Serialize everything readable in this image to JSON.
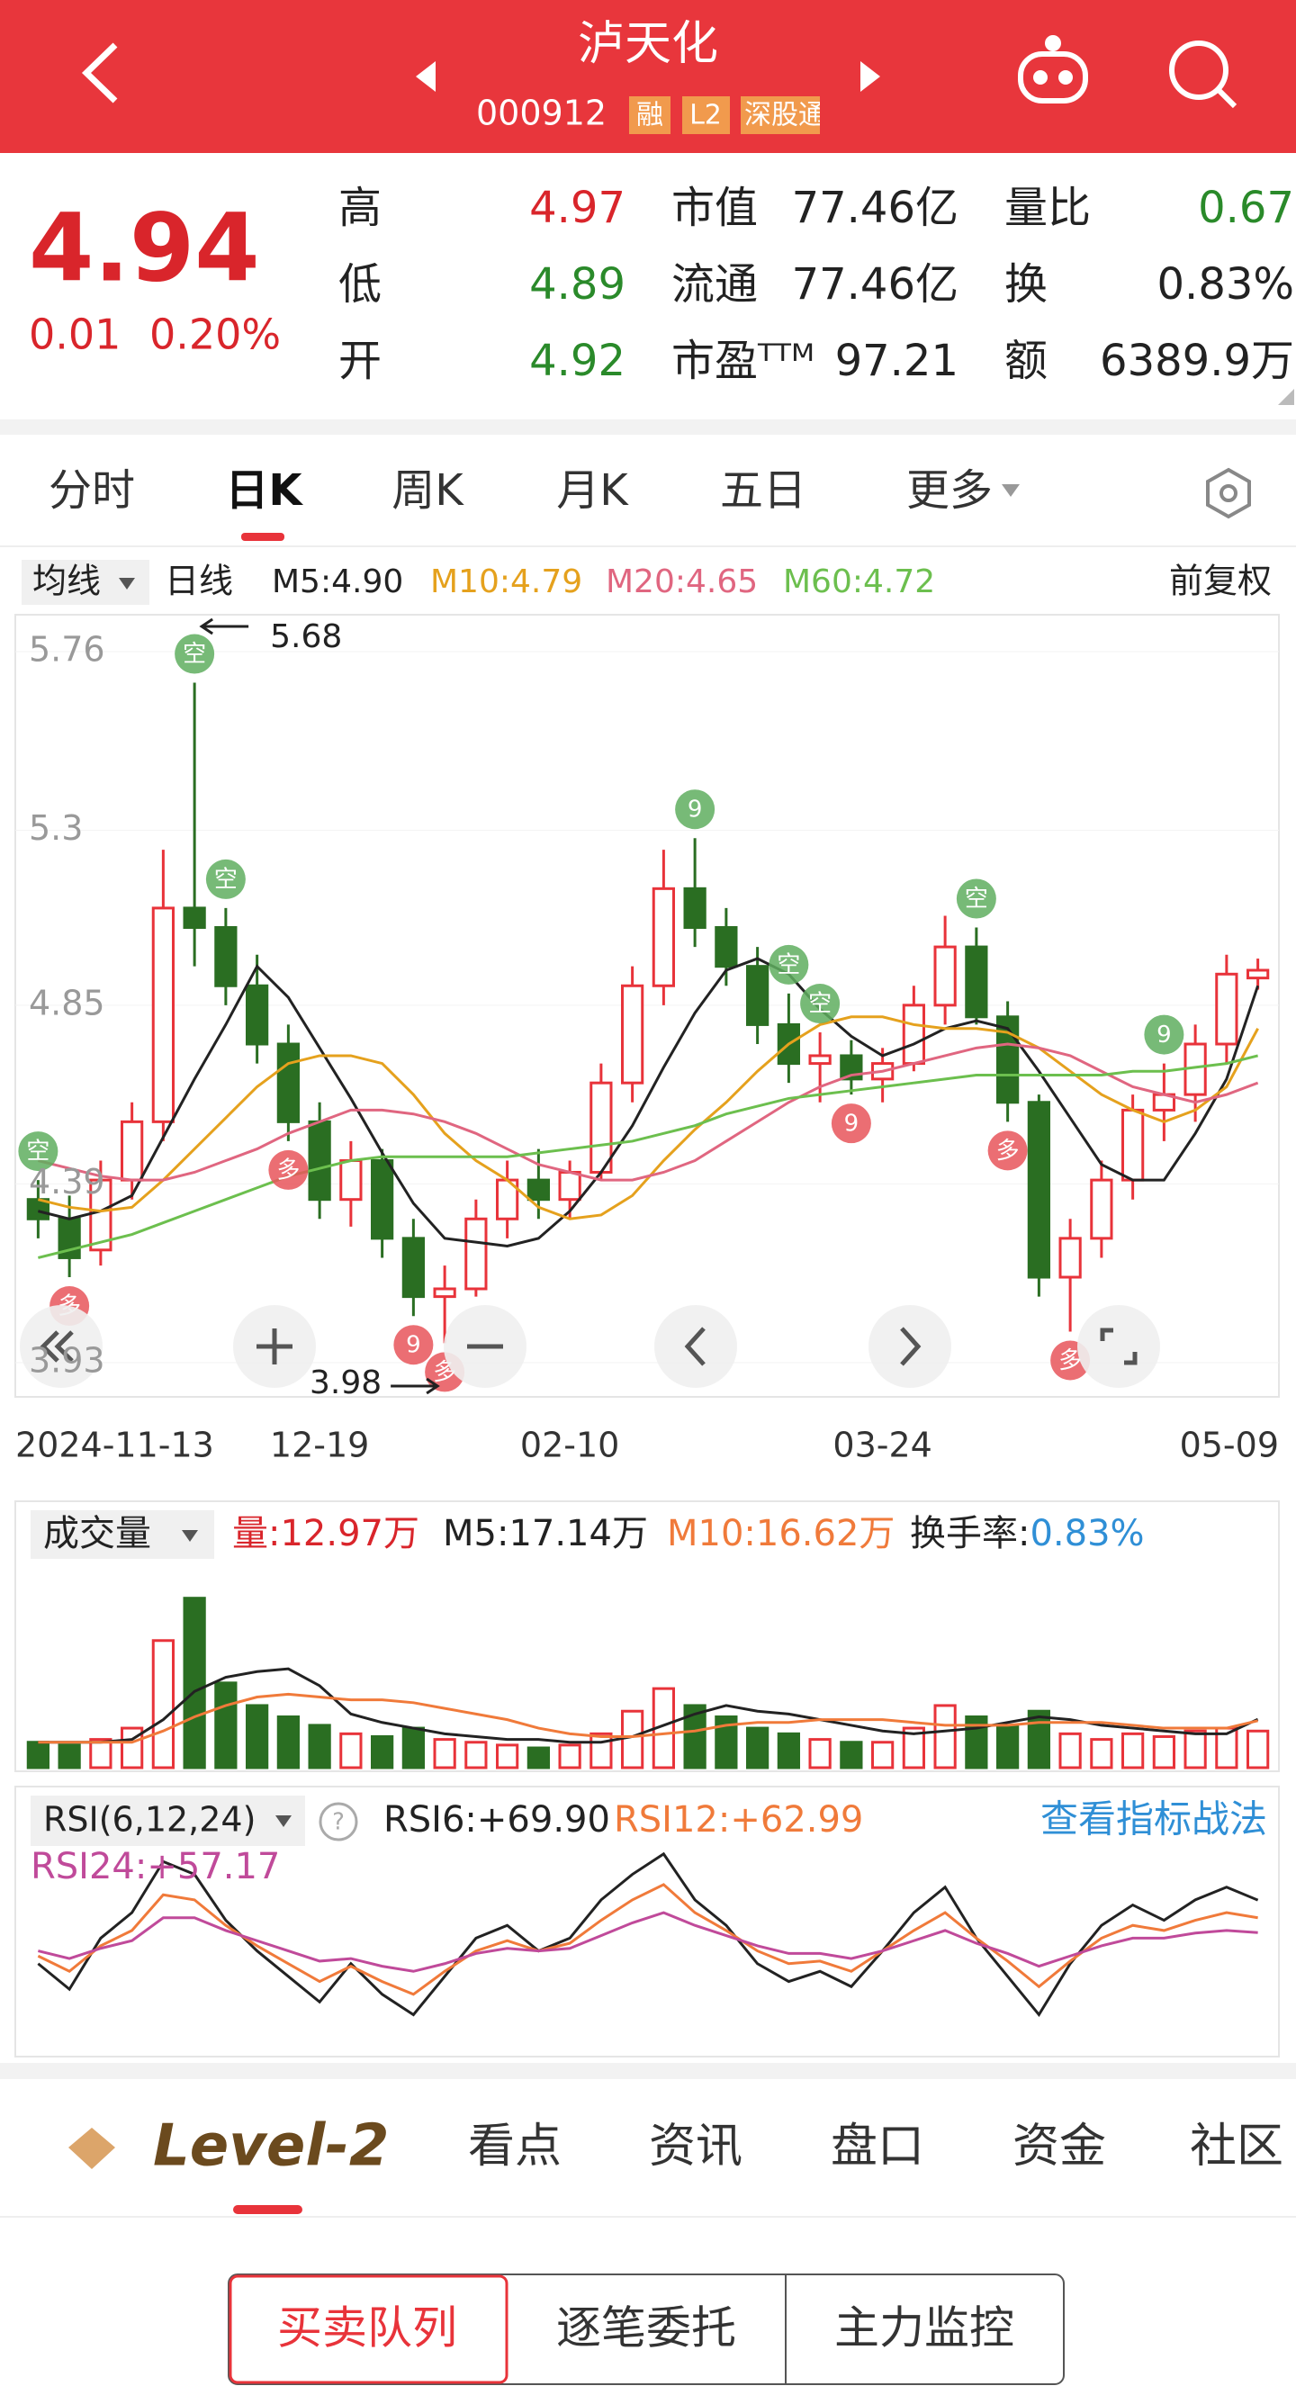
{
  "header": {
    "title": "泸天化",
    "code": "000912",
    "badges": [
      "融",
      "L2",
      "深股通"
    ]
  },
  "quote": {
    "price": "4.94",
    "change": "0.01",
    "pct": "0.20%",
    "color": "#d9252b",
    "stats": [
      [
        {
          "label": "高",
          "value": "4.97",
          "color": "#d9252b"
        },
        {
          "label": "市值",
          "value": "77.46亿",
          "color": "#222"
        },
        {
          "label": "量比",
          "value": "0.67",
          "color": "#2a8a2a"
        }
      ],
      [
        {
          "label": "低",
          "value": "4.89",
          "color": "#2a8a2a"
        },
        {
          "label": "流通",
          "value": "77.46亿",
          "color": "#222"
        },
        {
          "label": "换",
          "value": "0.83%",
          "color": "#222"
        }
      ],
      [
        {
          "label": "开",
          "value": "4.92",
          "color": "#2a8a2a"
        },
        {
          "label": "市盈ᵀᵀᴹ",
          "value": "97.21",
          "color": "#222"
        },
        {
          "label": "额",
          "value": "6389.9万",
          "color": "#222"
        }
      ]
    ]
  },
  "tabs": [
    "分时",
    "日K",
    "周K",
    "月K",
    "五日",
    "更多"
  ],
  "ma_bar": {
    "selector": "均线",
    "period": "日线",
    "adjust": "前复权"
  },
  "chart_data": [
    {
      "type": "candlestick",
      "up_color": "#e8333a",
      "down_color": "#2a6e22",
      "categories": [
        "2024-11-13",
        null,
        null,
        null,
        null,
        null,
        null,
        null,
        null,
        "12-19",
        null,
        null,
        null,
        null,
        null,
        null,
        null,
        "02-10",
        null,
        null,
        null,
        null,
        null,
        null,
        null,
        null,
        null,
        "03-24",
        null,
        null,
        null,
        null,
        null,
        null,
        null,
        null,
        null,
        null,
        null,
        "05-09"
      ],
      "open": [
        4.35,
        4.3,
        4.22,
        4.4,
        4.55,
        5.1,
        5.05,
        4.9,
        4.75,
        4.55,
        4.35,
        4.45,
        4.25,
        4.1,
        4.12,
        4.3,
        4.4,
        4.35,
        4.42,
        4.65,
        4.9,
        5.15,
        5.05,
        4.95,
        4.8,
        4.7,
        4.72,
        4.66,
        4.7,
        4.85,
        5.0,
        4.82,
        4.6,
        4.15,
        4.25,
        4.4,
        4.58,
        4.62,
        4.75,
        4.92
      ],
      "high": [
        4.4,
        4.36,
        4.45,
        4.6,
        5.25,
        5.68,
        5.1,
        4.98,
        4.8,
        4.6,
        4.5,
        4.48,
        4.3,
        4.18,
        4.35,
        4.45,
        4.48,
        4.45,
        4.7,
        4.95,
        5.25,
        5.28,
        5.1,
        5.0,
        4.88,
        4.78,
        4.76,
        4.74,
        4.9,
        5.08,
        5.05,
        4.86,
        4.62,
        4.3,
        4.45,
        4.62,
        4.7,
        4.8,
        4.98,
        4.97
      ],
      "low": [
        4.25,
        4.15,
        4.18,
        4.35,
        4.5,
        4.95,
        4.85,
        4.7,
        4.5,
        4.3,
        4.28,
        4.2,
        4.05,
        3.98,
        4.1,
        4.25,
        4.3,
        4.3,
        4.4,
        4.6,
        4.85,
        5.0,
        4.9,
        4.75,
        4.65,
        4.6,
        4.62,
        4.6,
        4.68,
        4.8,
        4.8,
        4.55,
        4.1,
        4.01,
        4.2,
        4.35,
        4.5,
        4.55,
        4.7,
        4.89
      ],
      "close": [
        4.3,
        4.2,
        4.4,
        4.55,
        5.1,
        5.05,
        4.9,
        4.75,
        4.55,
        4.35,
        4.45,
        4.25,
        4.1,
        4.12,
        4.3,
        4.4,
        4.35,
        4.42,
        4.65,
        4.9,
        5.15,
        5.05,
        4.95,
        4.8,
        4.7,
        4.72,
        4.66,
        4.7,
        4.85,
        5.0,
        4.82,
        4.6,
        4.15,
        4.25,
        4.4,
        4.58,
        4.62,
        4.75,
        4.93,
        4.94
      ],
      "ylim": [
        3.93,
        5.76
      ],
      "yticks": [
        5.76,
        5.3,
        4.85,
        4.39,
        3.93
      ],
      "series": [
        {
          "name": "M5:4.90",
          "color": "#222222",
          "values": [
            4.32,
            4.3,
            4.32,
            4.36,
            4.51,
            4.66,
            4.8,
            4.95,
            4.87,
            4.74,
            4.61,
            4.47,
            4.34,
            4.25,
            4.24,
            4.23,
            4.25,
            4.32,
            4.42,
            4.54,
            4.69,
            4.83,
            4.94,
            4.97,
            4.93,
            4.84,
            4.77,
            4.72,
            4.75,
            4.79,
            4.81,
            4.79,
            4.68,
            4.56,
            4.44,
            4.4,
            4.4,
            4.52,
            4.66,
            4.9
          ]
        },
        {
          "name": "M10:4.79",
          "color": "#e5a11d",
          "values": [
            4.35,
            4.33,
            4.32,
            4.33,
            4.4,
            4.48,
            4.56,
            4.64,
            4.7,
            4.72,
            4.72,
            4.7,
            4.62,
            4.52,
            4.45,
            4.4,
            4.33,
            4.3,
            4.31,
            4.36,
            4.45,
            4.53,
            4.6,
            4.68,
            4.75,
            4.8,
            4.82,
            4.82,
            4.8,
            4.79,
            4.79,
            4.78,
            4.74,
            4.68,
            4.62,
            4.58,
            4.55,
            4.58,
            4.64,
            4.79
          ]
        },
        {
          "name": "M20:4.65",
          "color": "#e06680",
          "values": [
            4.45,
            4.43,
            4.41,
            4.4,
            4.4,
            4.42,
            4.45,
            4.48,
            4.52,
            4.55,
            4.58,
            4.58,
            4.57,
            4.55,
            4.52,
            4.48,
            4.44,
            4.42,
            4.4,
            4.4,
            4.42,
            4.45,
            4.5,
            4.55,
            4.6,
            4.64,
            4.67,
            4.68,
            4.7,
            4.72,
            4.74,
            4.75,
            4.74,
            4.72,
            4.68,
            4.64,
            4.62,
            4.6,
            4.62,
            4.65
          ]
        },
        {
          "name": "M60:4.72",
          "color": "#6cbf4e",
          "values": [
            4.2,
            4.22,
            4.24,
            4.26,
            4.29,
            4.32,
            4.35,
            4.38,
            4.41,
            4.43,
            4.45,
            4.46,
            4.46,
            4.46,
            4.46,
            4.46,
            4.47,
            4.48,
            4.49,
            4.5,
            4.52,
            4.54,
            4.57,
            4.59,
            4.61,
            4.62,
            4.63,
            4.64,
            4.65,
            4.66,
            4.67,
            4.67,
            4.67,
            4.67,
            4.67,
            4.68,
            4.68,
            4.69,
            4.7,
            4.72
          ]
        }
      ],
      "signals": [
        {
          "label": "空",
          "color": "#5fae5f"
        },
        {
          "label": "多",
          "color": "#e8555a"
        },
        null,
        null,
        null,
        {
          "label": "空",
          "color": "#5fae5f"
        },
        {
          "label": "空",
          "color": "#5fae5f"
        },
        null,
        {
          "label": "多",
          "color": "#e8555a"
        },
        null,
        null,
        null,
        {
          "label": "9",
          "color": "#e8555a"
        },
        {
          "label": "多",
          "color": "#e8555a"
        },
        null,
        null,
        null,
        null,
        null,
        null,
        null,
        {
          "label": "9",
          "color": "#5fae5f"
        },
        null,
        null,
        {
          "label": "空",
          "color": "#5fae5f"
        },
        {
          "label": "空",
          "color": "#5fae5f"
        },
        {
          "label": "9",
          "color": "#e8555a"
        },
        null,
        null,
        null,
        {
          "label": "空",
          "color": "#5fae5f"
        },
        {
          "label": "多",
          "color": "#e8555a"
        },
        null,
        {
          "label": "多",
          "color": "#e8555a"
        },
        null,
        null,
        {
          "label": "9",
          "color": "#5fae5f"
        },
        null,
        null,
        null
      ]
    },
    {
      "type": "bar",
      "title": "成交量",
      "label": "量:12.97万",
      "label_color": "#d9252b",
      "turnover_label": "换手率:",
      "turnover": "0.83%",
      "turnover_color": "#2f8fd6",
      "values": [
        9,
        8,
        10,
        14,
        45,
        60,
        30,
        22,
        18,
        15,
        12,
        11,
        14,
        10,
        9,
        8,
        7,
        8,
        12,
        20,
        28,
        22,
        18,
        14,
        12,
        10,
        9,
        9,
        14,
        22,
        18,
        15,
        20,
        12,
        10,
        12,
        11,
        13,
        14,
        12.97
      ],
      "ylim": [
        0,
        65
      ],
      "series": [
        {
          "name": "M5:17.14万",
          "color": "#222222",
          "values": [
            9,
            9,
            9,
            10,
            17,
            27,
            32,
            34,
            35,
            29,
            19,
            16,
            14,
            12,
            11,
            10,
            10,
            9,
            9,
            11,
            15,
            19,
            22,
            20,
            19,
            17,
            15,
            13,
            12,
            13,
            14,
            16,
            18,
            17,
            15,
            14,
            13,
            12,
            12,
            17.14
          ]
        },
        {
          "name": "M10:16.62万",
          "color": "#f07a3a",
          "values": [
            9,
            9,
            9,
            9,
            13,
            18,
            22,
            25,
            26,
            25,
            24,
            24,
            23,
            21,
            19,
            17,
            14,
            12,
            11,
            11,
            12,
            13,
            15,
            16,
            16,
            17,
            17,
            17,
            16,
            15,
            15,
            15,
            16,
            16,
            16,
            15,
            14,
            14,
            14,
            16.62
          ]
        }
      ]
    },
    {
      "type": "line",
      "title": "RSI(6,12,24)",
      "link": "查看指标战法",
      "ylim": [
        10,
        95
      ],
      "series": [
        {
          "name": "RSI6:+69.90",
          "color": "#222222",
          "values": [
            45,
            35,
            55,
            65,
            85,
            80,
            62,
            50,
            40,
            30,
            45,
            33,
            25,
            40,
            55,
            60,
            50,
            55,
            70,
            80,
            88,
            70,
            60,
            45,
            38,
            42,
            36,
            50,
            65,
            75,
            55,
            40,
            25,
            45,
            60,
            68,
            62,
            70,
            75,
            69.9
          ]
        },
        {
          "name": "RSI12:+62.99",
          "color": "#f07a3a",
          "values": [
            48,
            42,
            52,
            58,
            72,
            70,
            60,
            52,
            45,
            38,
            44,
            38,
            33,
            42,
            50,
            54,
            50,
            53,
            62,
            70,
            76,
            65,
            58,
            50,
            45,
            46,
            42,
            50,
            58,
            65,
            55,
            46,
            36,
            46,
            55,
            60,
            58,
            62,
            65,
            62.99
          ]
        },
        {
          "name": "RSI24:+57.17",
          "color": "#c04a9a",
          "values": [
            50,
            47,
            51,
            54,
            63,
            63,
            58,
            54,
            50,
            46,
            47,
            44,
            42,
            45,
            49,
            51,
            50,
            51,
            56,
            61,
            65,
            60,
            56,
            52,
            49,
            49,
            47,
            50,
            54,
            58,
            53,
            49,
            44,
            48,
            52,
            55,
            55,
            57,
            58,
            57.17
          ]
        }
      ]
    }
  ],
  "bottom_tabs": {
    "brand": "Level-2",
    "items": [
      "看点",
      "资讯",
      "盘口",
      "资金",
      "社区"
    ]
  },
  "buttons": [
    "买卖队列",
    "逐笔委托",
    "主力监控"
  ]
}
